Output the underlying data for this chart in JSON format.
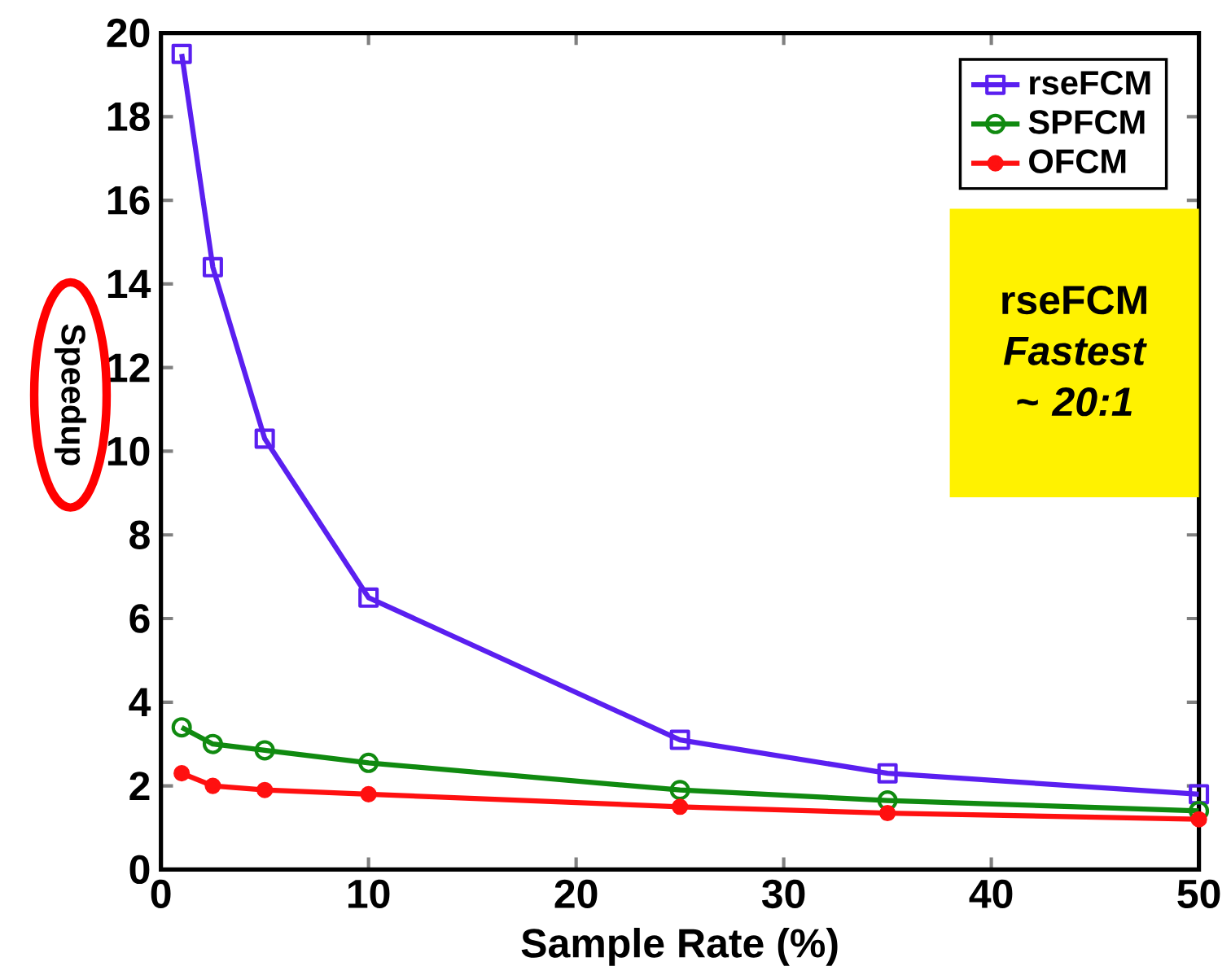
{
  "chart_data": {
    "type": "line",
    "xlabel": "Sample Rate (%)",
    "ylabel": "Speedup",
    "xlim": [
      0,
      50
    ],
    "xticks": [
      0,
      10,
      20,
      30,
      40,
      50
    ],
    "ylim": [
      0,
      20
    ],
    "yticks": [
      0,
      2,
      4,
      6,
      8,
      10,
      12,
      14,
      16,
      18,
      20
    ],
    "grid": false,
    "legend": "top right",
    "line_style": "solid",
    "annotations": [
      "rseFCM *Fastest ~ 20:1*"
    ],
    "series": [
      {
        "name": "rseFCM",
        "color": "#5a1ff0",
        "marker": "square",
        "x": [
          1,
          2.5,
          5,
          10,
          25,
          35,
          50
        ],
        "values": [
          19.5,
          14.4,
          10.3,
          6.5,
          3.1,
          2.3,
          1.8
        ]
      },
      {
        "name": "SPFCM",
        "color": "#108a10",
        "marker": "circle",
        "x": [
          1,
          2.5,
          5,
          10,
          25,
          35,
          50
        ],
        "values": [
          3.4,
          3.0,
          2.85,
          2.55,
          1.9,
          1.65,
          1.4
        ]
      },
      {
        "name": "OFCM",
        "color": "#ff1010",
        "marker": "dot",
        "x": [
          1,
          2.5,
          5,
          10,
          25,
          35,
          50
        ],
        "values": [
          2.3,
          2.0,
          1.9,
          1.8,
          1.5,
          1.35,
          1.2
        ]
      }
    ]
  }
}
